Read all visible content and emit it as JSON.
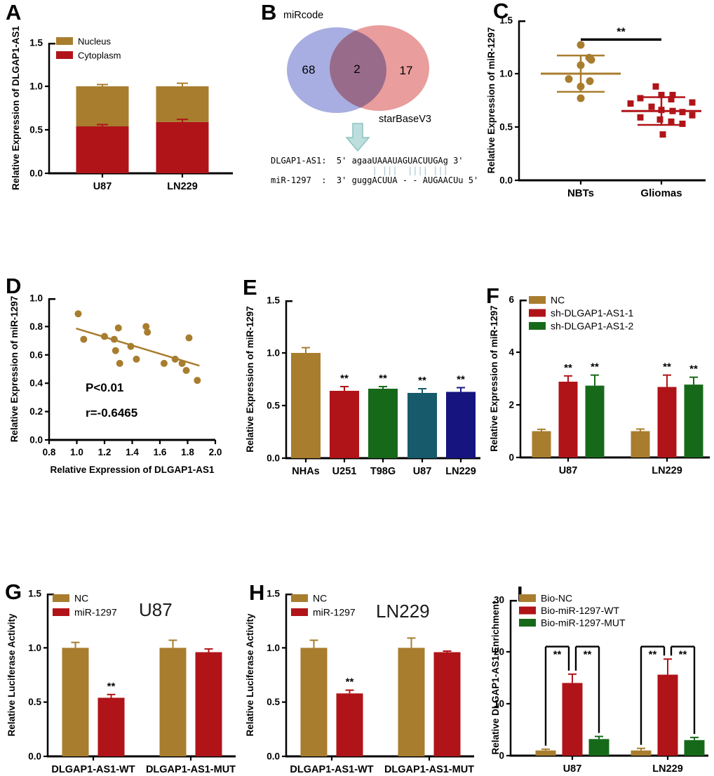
{
  "palette": {
    "tan": "#A87D2E",
    "red": "#B01418",
    "green": "#17691A",
    "teal": "#175A6B",
    "navy": "#16157F",
    "black": "#000000",
    "venn_blue": "#99A0DC",
    "venn_red": "#E58C8C",
    "arrow_fill": "#BCDEDC",
    "arrow_stroke": "#8CC3C0",
    "seq_bar": "#9FBFCF"
  },
  "chart_data": {
    "panels": [
      {
        "letter": "A",
        "type": "stacked_bar",
        "ylabel": "Relative Expression of DLGAP1-AS1",
        "ylim": [
          0,
          1.5
        ],
        "yticks": {
          "values": [
            0,
            0.5,
            1.0,
            1.5
          ],
          "labels": [
            "0.0",
            "0.5",
            "1.0",
            "1.5"
          ]
        },
        "categories": [
          "U87",
          "LN229"
        ],
        "series": [
          {
            "name": "Cytoplasm",
            "color": "red",
            "values": [
              0.54,
              0.59
            ],
            "errors": [
              0.02,
              0.03
            ]
          },
          {
            "name": "Nucleus",
            "color": "tan",
            "values": [
              0.46,
              0.41
            ],
            "errors": [
              0.02,
              0.035
            ]
          }
        ],
        "legend": [
          {
            "label": "Nucleus",
            "color": "tan"
          },
          {
            "label": "Cytoplasm",
            "color": "red"
          }
        ]
      },
      {
        "letter": "B",
        "type": "venn",
        "sets": [
          {
            "label": "miRcode",
            "count": "68",
            "color": "venn_blue"
          },
          {
            "label": "starBaseV3",
            "count": "17",
            "color": "venn_red"
          }
        ],
        "overlap_count": "2",
        "alignment": {
          "lines": [
            "DLGAP1-AS1:  5' agaaUAAAUAGUACUUGAg 3'",
            "                    | |||  |||| |||",
            "miR-1297  :  3' guggACUUA - - AUGAACUu 5'"
          ]
        }
      },
      {
        "letter": "C",
        "type": "dot_plot",
        "ylabel": "Relative Expression of miR-1297",
        "ylim": [
          0,
          1.5
        ],
        "yticks": {
          "values": [
            0,
            0.5,
            1.0,
            1.5
          ],
          "labels": [
            "0.0",
            "0.5",
            "1.0",
            "1.5"
          ]
        },
        "sig": {
          "label": "**",
          "y": 1.32
        },
        "groups": [
          {
            "name": "NBTs",
            "color": "tan",
            "marker": "circle",
            "mean": 1.0,
            "sd_low": 0.83,
            "sd_high": 1.17,
            "points": [
              [
                0,
                1.27
              ],
              [
                12,
                1.15
              ],
              [
                15,
                1.13
              ],
              [
                0,
                1.08
              ],
              [
                -17,
                0.95
              ],
              [
                13,
                0.93
              ],
              [
                0,
                0.88
              ],
              [
                0,
                0.77
              ]
            ]
          },
          {
            "name": "Gliomas",
            "color": "red",
            "marker": "square",
            "mean": 0.65,
            "sd_low": 0.52,
            "sd_high": 0.78,
            "points": [
              [
                -8,
                0.88
              ],
              [
                0,
                0.8
              ],
              [
                16,
                0.8
              ],
              [
                -30,
                0.77
              ],
              [
                14,
                0.76
              ],
              [
                44,
                0.73
              ],
              [
                -44,
                0.72
              ],
              [
                -14,
                0.69
              ],
              [
                0,
                0.66
              ],
              [
                16,
                0.65
              ],
              [
                30,
                0.64
              ],
              [
                44,
                0.61
              ],
              [
                -30,
                0.59
              ],
              [
                -2,
                0.57
              ],
              [
                14,
                0.55
              ],
              [
                30,
                0.53
              ],
              [
                2,
                0.43
              ]
            ]
          }
        ]
      },
      {
        "letter": "D",
        "type": "scatter",
        "xlabel": "Relative Expression of DLGAP1-AS1",
        "ylabel": "Relative Expression of miR-1297",
        "xlim": [
          0.8,
          2.0
        ],
        "xticks": {
          "values": [
            0.8,
            1.0,
            1.2,
            1.4,
            1.6,
            1.8,
            2.0
          ],
          "labels": [
            "0.8",
            "1.0",
            "1.2",
            "1.4",
            "1.6",
            "1.8",
            "2.0"
          ]
        },
        "ylim": [
          0,
          1.0
        ],
        "yticks": {
          "values": [
            0,
            0.2,
            0.4,
            0.6,
            0.8,
            1.0
          ],
          "labels": [
            "0.0",
            "0.2",
            "0.4",
            "0.6",
            "0.8",
            "1.0"
          ]
        },
        "point_color": "tan",
        "points": [
          [
            1.01,
            0.89
          ],
          [
            1.05,
            0.71
          ],
          [
            1.2,
            0.73
          ],
          [
            1.27,
            0.71
          ],
          [
            1.3,
            0.79
          ],
          [
            1.28,
            0.63
          ],
          [
            1.31,
            0.54
          ],
          [
            1.39,
            0.66
          ],
          [
            1.43,
            0.57
          ],
          [
            1.5,
            0.8
          ],
          [
            1.51,
            0.76
          ],
          [
            1.63,
            0.54
          ],
          [
            1.71,
            0.57
          ],
          [
            1.76,
            0.54
          ],
          [
            1.79,
            0.49
          ],
          [
            1.81,
            0.72
          ],
          [
            1.87,
            0.42
          ]
        ],
        "regression": {
          "x1": 1.0,
          "y1": 0.785,
          "x2": 1.88,
          "y2": 0.525
        },
        "annotations": [
          "P<0.01",
          "r=-0.6465"
        ]
      },
      {
        "letter": "E",
        "type": "bar",
        "ylabel": "Relative Expression of miR-1297",
        "ylim": [
          0,
          1.5
        ],
        "yticks": {
          "values": [
            0,
            0.5,
            1.0,
            1.5
          ],
          "labels": [
            "0.0",
            "0.5",
            "1.0",
            "1.5"
          ]
        },
        "categories": [
          "NHAs",
          "U251",
          "T98G",
          "U87",
          "LN229"
        ],
        "bars": [
          {
            "color": "tan",
            "value": 1.0,
            "error": 0.05,
            "sig": ""
          },
          {
            "color": "red",
            "value": 0.64,
            "error": 0.04,
            "sig": "**"
          },
          {
            "color": "green",
            "value": 0.66,
            "error": 0.02,
            "sig": "**"
          },
          {
            "color": "teal",
            "value": 0.62,
            "error": 0.04,
            "sig": "**"
          },
          {
            "color": "navy",
            "value": 0.63,
            "error": 0.04,
            "sig": "**"
          }
        ]
      },
      {
        "letter": "F",
        "type": "grouped_bar",
        "ylabel": "Relative Expression of miR-1297",
        "ylim": [
          0,
          6
        ],
        "yticks": {
          "values": [
            0,
            2,
            4,
            6
          ],
          "labels": [
            "0",
            "2",
            "4",
            "6"
          ]
        },
        "categories": [
          "U87",
          "LN229"
        ],
        "series": [
          {
            "name": "NC",
            "color": "tan",
            "values": [
              1.0,
              1.0
            ],
            "errors": [
              0.07,
              0.08
            ],
            "sig": [
              "",
              ""
            ]
          },
          {
            "name": "sh-DLGAP1-AS1-1",
            "color": "red",
            "values": [
              2.88,
              2.68
            ],
            "errors": [
              0.22,
              0.45
            ],
            "sig": [
              "**",
              "**"
            ]
          },
          {
            "name": "sh-DLGAP1-AS1-2",
            "color": "green",
            "values": [
              2.73,
              2.77
            ],
            "errors": [
              0.4,
              0.28
            ],
            "sig": [
              "**",
              "**"
            ]
          }
        ]
      },
      {
        "letter": "G",
        "type": "grouped_bar",
        "title": "U87",
        "ylabel": "Relative Luciferase Activity",
        "ylim": [
          0,
          1.5
        ],
        "yticks": {
          "values": [
            0,
            0.5,
            1.0,
            1.5
          ],
          "labels": [
            "0.0",
            "0.5",
            "1.0",
            "1.5"
          ]
        },
        "categories": [
          "DLGAP1-AS1-WT",
          "DLGAP1-AS1-MUT"
        ],
        "series": [
          {
            "name": "NC",
            "color": "tan",
            "values": [
              1.0,
              1.0
            ],
            "errors": [
              0.05,
              0.07
            ],
            "sig": [
              "",
              ""
            ]
          },
          {
            "name": "miR-1297",
            "color": "red",
            "values": [
              0.54,
              0.96
            ],
            "errors": [
              0.03,
              0.03
            ],
            "sig": [
              "**",
              ""
            ]
          }
        ]
      },
      {
        "letter": "H",
        "type": "grouped_bar",
        "title": "LN229",
        "ylabel": "Relative Luciferase Activity",
        "ylim": [
          0,
          1.5
        ],
        "yticks": {
          "values": [
            0,
            0.5,
            1.0,
            1.5
          ],
          "labels": [
            "0.0",
            "0.5",
            "1.0",
            "1.5"
          ]
        },
        "categories": [
          "DLGAP1-AS1-WT",
          "DLGAP1-AS1-MUT"
        ],
        "series": [
          {
            "name": "NC",
            "color": "tan",
            "values": [
              1.0,
              1.0
            ],
            "errors": [
              0.07,
              0.09
            ],
            "sig": [
              "",
              ""
            ]
          },
          {
            "name": "miR-1297",
            "color": "red",
            "values": [
              0.58,
              0.96
            ],
            "errors": [
              0.03,
              0.01
            ],
            "sig": [
              "**",
              ""
            ]
          }
        ]
      },
      {
        "letter": "I",
        "type": "grouped_bar",
        "ylabel": "Relative DLGAP1-AS1 Enrichment",
        "ylim": [
          0,
          30
        ],
        "yticks": {
          "values": [
            0,
            10,
            20,
            30
          ],
          "labels": [
            "0",
            "10",
            "20",
            "30"
          ]
        },
        "categories": [
          "U87",
          "LN229"
        ],
        "series": [
          {
            "name": "Bio-NC",
            "color": "tan",
            "values": [
              1.0,
              1.0
            ],
            "errors": [
              0.25,
              0.4
            ],
            "sig": [
              "",
              ""
            ]
          },
          {
            "name": "Bio-miR-1297-WT",
            "color": "red",
            "values": [
              14.0,
              15.6
            ],
            "errors": [
              1.7,
              3.0
            ],
            "sig": [
              "",
              ""
            ]
          },
          {
            "name": "Bio-miR-1297-MUT",
            "color": "green",
            "values": [
              3.2,
              3.0
            ],
            "errors": [
              0.5,
              0.5
            ],
            "sig": [
              "",
              ""
            ]
          }
        ],
        "brackets": [
          {
            "from": 0,
            "to": 1,
            "y": 21,
            "label": "**"
          },
          {
            "from": 1,
            "to": 2,
            "y": 21,
            "label": "**"
          }
        ]
      }
    ]
  }
}
